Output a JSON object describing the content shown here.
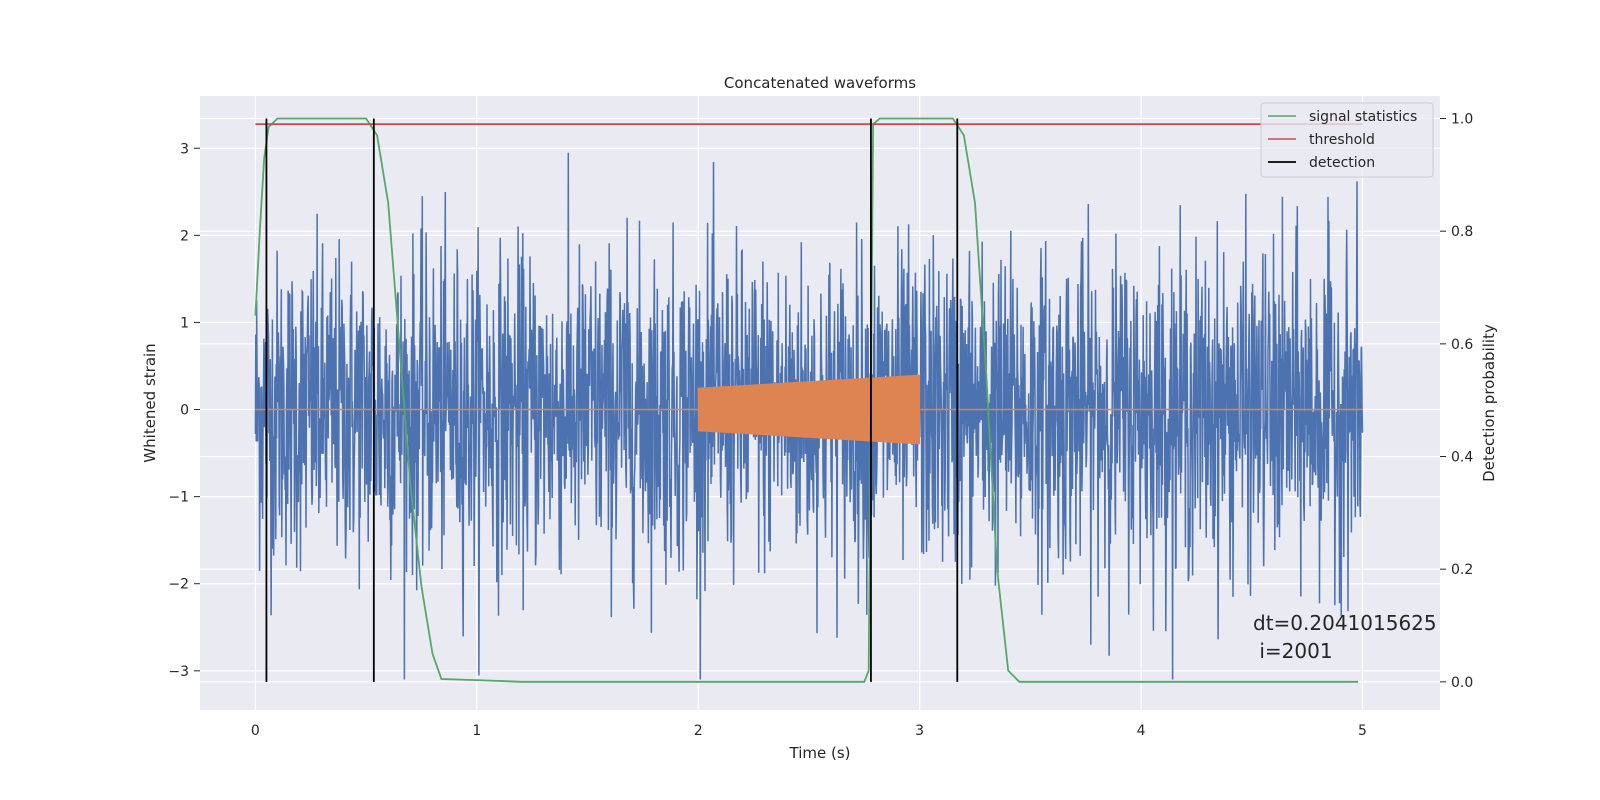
{
  "chart_data": {
    "type": "line",
    "title": "Concatenated waveforms",
    "xlabel": "Time (s)",
    "ylabel": "Whitened strain",
    "y2label": "Detection probability",
    "xlim": [
      -0.25,
      5.35
    ],
    "ylim": [
      -3.45,
      3.6
    ],
    "y2lim": [
      -0.05,
      1.04
    ],
    "xticks": [
      0,
      1,
      2,
      3,
      4,
      5
    ],
    "yticks": [
      -3,
      -2,
      -1,
      0,
      1,
      2,
      3
    ],
    "y2ticks": [
      0.0,
      0.2,
      0.4,
      0.6,
      0.8,
      1.0
    ],
    "xtick_labels": [
      "0",
      "1",
      "2",
      "3",
      "4",
      "5"
    ],
    "ytick_labels": [
      "−3",
      "−2",
      "−1",
      "0",
      "1",
      "2",
      "3"
    ],
    "y2tick_labels": [
      "0.0",
      "0.2",
      "0.4",
      "0.6",
      "0.8",
      "1.0"
    ],
    "grid": true,
    "legend_position": "top-right",
    "series": [
      {
        "name": "",
        "axis": "left",
        "color": "#4c72b0",
        "kind": "noise",
        "x_range": [
          0,
          5
        ],
        "amplitude_std": 0.9
      },
      {
        "name": "",
        "axis": "left",
        "color": "#dd8452",
        "kind": "chirp",
        "x_range": [
          2,
          3
        ],
        "amplitude_start": 0.25,
        "amplitude_end": 0.4,
        "baseline": 0
      },
      {
        "name": "signal statistics",
        "axis": "right",
        "color": "#55a868",
        "points": [
          [
            0.0,
            0.65
          ],
          [
            0.02,
            0.8
          ],
          [
            0.04,
            0.93
          ],
          [
            0.06,
            0.985
          ],
          [
            0.1,
            1.0
          ],
          [
            0.5,
            1.0
          ],
          [
            0.55,
            0.97
          ],
          [
            0.6,
            0.85
          ],
          [
            0.65,
            0.6
          ],
          [
            0.7,
            0.35
          ],
          [
            0.75,
            0.17
          ],
          [
            0.8,
            0.05
          ],
          [
            0.84,
            0.005
          ],
          [
            1.0,
            0.003
          ],
          [
            1.2,
            0.0
          ],
          [
            2.75,
            0.0
          ],
          [
            2.77,
            0.02
          ],
          [
            2.78,
            0.5
          ],
          [
            2.79,
            0.99
          ],
          [
            2.82,
            1.0
          ],
          [
            3.15,
            1.0
          ],
          [
            3.2,
            0.97
          ],
          [
            3.25,
            0.85
          ],
          [
            3.3,
            0.55
          ],
          [
            3.35,
            0.2
          ],
          [
            3.4,
            0.02
          ],
          [
            3.45,
            0.0
          ],
          [
            4.98,
            0.0
          ]
        ]
      },
      {
        "name": "threshold",
        "axis": "right",
        "color": "#c44e52",
        "points": [
          [
            0,
            0.99
          ],
          [
            5,
            0.99
          ]
        ]
      },
      {
        "name": "detection",
        "axis": "right",
        "color": "#000000",
        "vlines": [
          0.05,
          0.535,
          2.78,
          3.17
        ],
        "range": [
          0,
          1.0
        ]
      }
    ],
    "annotations": [
      {
        "text": "dt=0.2041015625",
        "x": 4.5,
        "y": -2.42
      },
      {
        "text": " i=2001",
        "x": 4.5,
        "y": -2.74
      }
    ]
  }
}
